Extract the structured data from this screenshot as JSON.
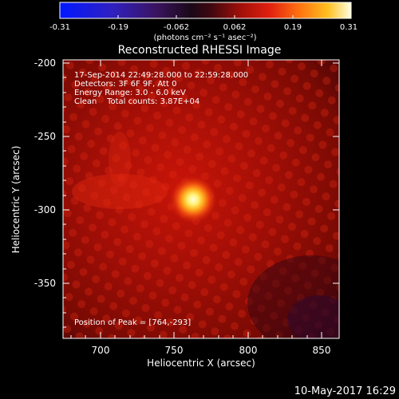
{
  "colorbar": {
    "ticks": [
      "-0.31",
      "-0.19",
      "-0.062",
      "0.062",
      "0.19",
      "0.31"
    ],
    "unit_label": "(photons cm⁻² s⁻¹ asec⁻²)"
  },
  "title": "Reconstructed RHESSI Image",
  "info": {
    "line1": "17-Sep-2014 22:49:28.000 to 22:59:28.000",
    "line2": "Detectors: 3F 6F 9F, Att 0",
    "line3": "Energy Range: 3.0 - 6.0 keV",
    "line4": "Clean    Total counts: 3.87E+04"
  },
  "peak_label": "Position of Peak = [764,-293]",
  "axes": {
    "xlabel": "Heliocentric X (arcsec)",
    "ylabel": "Heliocentric Y (arcsec)",
    "xticks": [
      "700",
      "750",
      "800",
      "850"
    ],
    "yticks": [
      "-200",
      "-250",
      "-300",
      "-350"
    ]
  },
  "timestamp": "10-May-2017 16:29",
  "colors": {
    "background": "#000000",
    "text": "#ffffff"
  }
}
